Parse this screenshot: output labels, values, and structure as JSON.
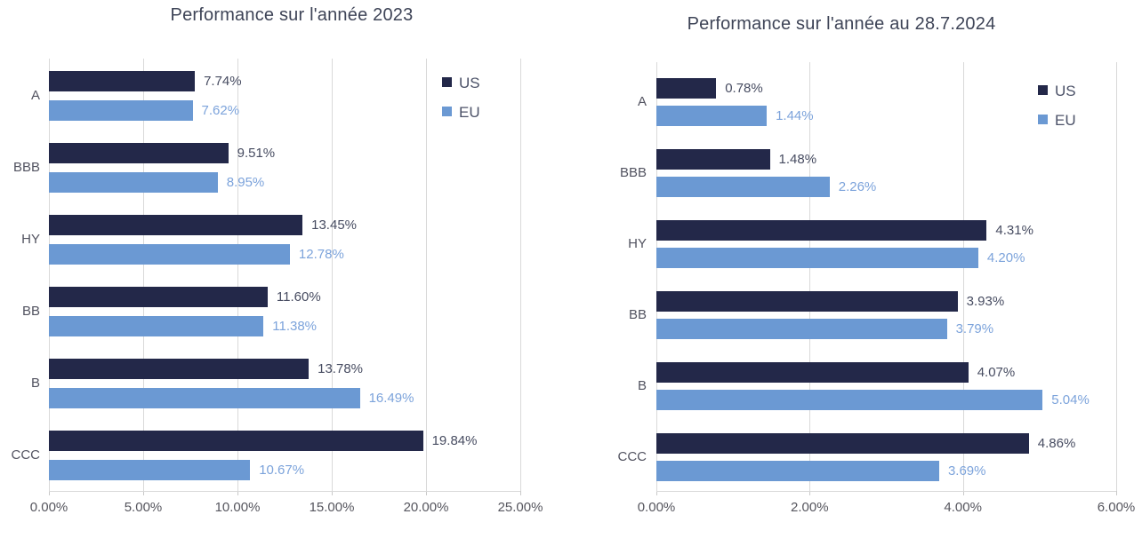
{
  "page": {
    "background": "#ffffff"
  },
  "colors": {
    "us_bar": "#232849",
    "eu_bar": "#6B99D3",
    "us_value_text": "#474C61",
    "eu_value_text": "#7CA3DB",
    "gridline": "#D9D9D9",
    "tick_text": "#56565E",
    "category_text": "#525360",
    "legend_text": "#4C5268",
    "title_text": "#3E4457"
  },
  "chart_data": [
    {
      "type": "bar",
      "orientation": "horizontal",
      "title": "Performance sur l'année 2023",
      "categories": [
        "A",
        "BBB",
        "HY",
        "BB",
        "B",
        "CCC"
      ],
      "series": [
        {
          "name": "US",
          "color": "#232849",
          "label_color": "#474C61",
          "values": [
            7.74,
            9.51,
            13.45,
            11.6,
            13.78,
            19.84
          ],
          "labels": [
            "7.74%",
            "9.51%",
            "13.45%",
            "11.60%",
            "13.78%",
            "19.84%"
          ]
        },
        {
          "name": "EU",
          "color": "#6B99D3",
          "label_color": "#7CA3DB",
          "values": [
            7.62,
            8.95,
            12.78,
            11.38,
            16.49,
            10.67
          ],
          "labels": [
            "7.62%",
            "8.95%",
            "12.78%",
            "11.38%",
            "16.49%",
            "10.67%"
          ]
        }
      ],
      "x_axis": {
        "min": 0,
        "max": 25,
        "ticks": [
          {
            "value": 0,
            "label": "0.00%"
          },
          {
            "value": 5,
            "label": "5.00%"
          },
          {
            "value": 10,
            "label": "10.00%"
          },
          {
            "value": 15,
            "label": "15.00%"
          },
          {
            "value": 20,
            "label": "20.00%"
          },
          {
            "value": 25,
            "label": "25.00%"
          }
        ]
      },
      "legend": {
        "position": "top-right",
        "entries": [
          "US",
          "EU"
        ]
      },
      "grid": true
    },
    {
      "type": "bar",
      "orientation": "horizontal",
      "title": "Performance sur l'année au 28.7.2024",
      "categories": [
        "A",
        "BBB",
        "HY",
        "BB",
        "B",
        "CCC"
      ],
      "series": [
        {
          "name": "US",
          "color": "#232849",
          "label_color": "#474C61",
          "values": [
            0.78,
            1.48,
            4.31,
            3.93,
            4.07,
            4.86
          ],
          "labels": [
            "0.78%",
            "1.48%",
            "4.31%",
            "3.93%",
            "4.07%",
            "4.86%"
          ]
        },
        {
          "name": "EU",
          "color": "#6B99D3",
          "label_color": "#7CA3DB",
          "values": [
            1.44,
            2.26,
            4.2,
            3.79,
            5.04,
            3.69
          ],
          "labels": [
            "1.44%",
            "2.26%",
            "4.20%",
            "3.79%",
            "5.04%",
            "3.69%"
          ]
        }
      ],
      "x_axis": {
        "min": 0,
        "max": 6,
        "ticks": [
          {
            "value": 0,
            "label": "0.00%"
          },
          {
            "value": 2,
            "label": "2.00%"
          },
          {
            "value": 4,
            "label": "4.00%"
          },
          {
            "value": 6,
            "label": "6.00%"
          }
        ]
      },
      "legend": {
        "position": "top-right",
        "entries": [
          "US",
          "EU"
        ]
      },
      "grid": true
    }
  ]
}
